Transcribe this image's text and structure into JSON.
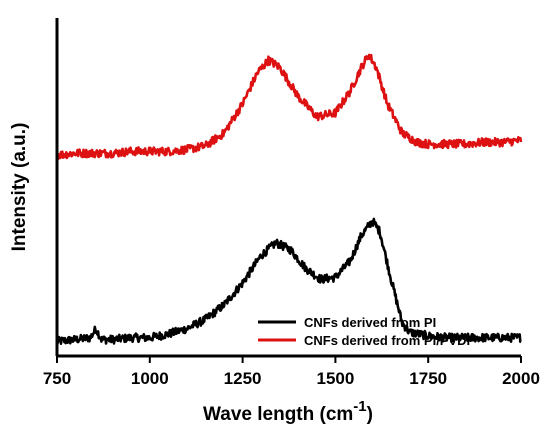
{
  "chart_data": {
    "type": "line",
    "xlabel": "Wave length (cm",
    "xlabel_sup": "-1",
    "ylabel": "Intensity (a.u.)",
    "xlim": [
      750,
      2000
    ],
    "xticks": [
      750,
      1000,
      1250,
      1500,
      1750,
      2000
    ],
    "xtick_labels": [
      "750",
      "1000",
      "1250",
      "1500",
      "1750",
      "2000"
    ],
    "y_ticks_shown": false,
    "grid": false,
    "legend_position": "bottom-right",
    "series": [
      {
        "name": "CNFs derived from PI",
        "color": "#000000",
        "points": [
          [
            750,
            0.08
          ],
          [
            800,
            0.09
          ],
          [
            840,
            0.1
          ],
          [
            855,
            0.15
          ],
          [
            870,
            0.09
          ],
          [
            900,
            0.09
          ],
          [
            950,
            0.1
          ],
          [
            1000,
            0.1
          ],
          [
            1050,
            0.12
          ],
          [
            1100,
            0.15
          ],
          [
            1150,
            0.2
          ],
          [
            1200,
            0.28
          ],
          [
            1250,
            0.4
          ],
          [
            1300,
            0.55
          ],
          [
            1340,
            0.62
          ],
          [
            1380,
            0.58
          ],
          [
            1420,
            0.48
          ],
          [
            1460,
            0.42
          ],
          [
            1500,
            0.43
          ],
          [
            1540,
            0.52
          ],
          [
            1570,
            0.66
          ],
          [
            1600,
            0.74
          ],
          [
            1620,
            0.68
          ],
          [
            1650,
            0.42
          ],
          [
            1680,
            0.18
          ],
          [
            1700,
            0.13
          ],
          [
            1750,
            0.11
          ],
          [
            1800,
            0.1
          ],
          [
            1850,
            0.1
          ],
          [
            1900,
            0.1
          ],
          [
            1950,
            0.1
          ],
          [
            2000,
            0.1
          ]
        ]
      },
      {
        "name": "CNFs derived from PI/PVDF",
        "color": "#dd1111",
        "points": [
          [
            750,
            1.1
          ],
          [
            800,
            1.11
          ],
          [
            850,
            1.11
          ],
          [
            900,
            1.11
          ],
          [
            950,
            1.12
          ],
          [
            1000,
            1.12
          ],
          [
            1050,
            1.12
          ],
          [
            1100,
            1.13
          ],
          [
            1150,
            1.15
          ],
          [
            1200,
            1.22
          ],
          [
            1250,
            1.38
          ],
          [
            1290,
            1.55
          ],
          [
            1320,
            1.62
          ],
          [
            1350,
            1.58
          ],
          [
            1400,
            1.42
          ],
          [
            1450,
            1.31
          ],
          [
            1500,
            1.33
          ],
          [
            1540,
            1.45
          ],
          [
            1570,
            1.58
          ],
          [
            1590,
            1.65
          ],
          [
            1610,
            1.58
          ],
          [
            1640,
            1.38
          ],
          [
            1680,
            1.22
          ],
          [
            1720,
            1.17
          ],
          [
            1750,
            1.16
          ],
          [
            1800,
            1.16
          ],
          [
            1850,
            1.16
          ],
          [
            1900,
            1.17
          ],
          [
            1950,
            1.17
          ],
          [
            2000,
            1.18
          ]
        ]
      }
    ]
  }
}
